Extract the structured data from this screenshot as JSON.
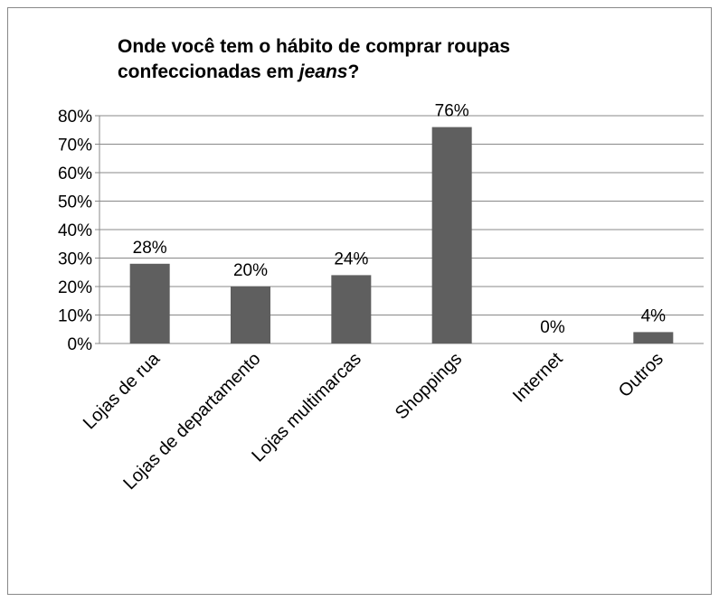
{
  "chart_data": {
    "type": "bar",
    "title": [
      "Onde você tem o hábito de comprar roupas",
      "confeccionadas em ",
      "jeans",
      "?"
    ],
    "categories": [
      "Lojas de rua",
      "Lojas de departamento",
      "Lojas multimarcas",
      "Shoppings",
      "Internet",
      "Outros"
    ],
    "values": [
      28,
      20,
      24,
      76,
      0,
      4
    ],
    "value_labels": [
      "28%",
      "20%",
      "24%",
      "76%",
      "0%",
      "4%"
    ],
    "color": "#5f5f5f",
    "ylim": [
      0,
      80
    ],
    "yticks": [
      {
        "value": 0,
        "label": "0%"
      },
      {
        "value": 10,
        "label": "10%"
      },
      {
        "value": 20,
        "label": "20%"
      },
      {
        "value": 30,
        "label": "30%"
      },
      {
        "value": 40,
        "label": "40%"
      },
      {
        "value": 50,
        "label": "50%"
      },
      {
        "value": 60,
        "label": "60%"
      },
      {
        "value": 70,
        "label": "70%"
      },
      {
        "value": 80,
        "label": "80%"
      }
    ],
    "grid": true
  }
}
